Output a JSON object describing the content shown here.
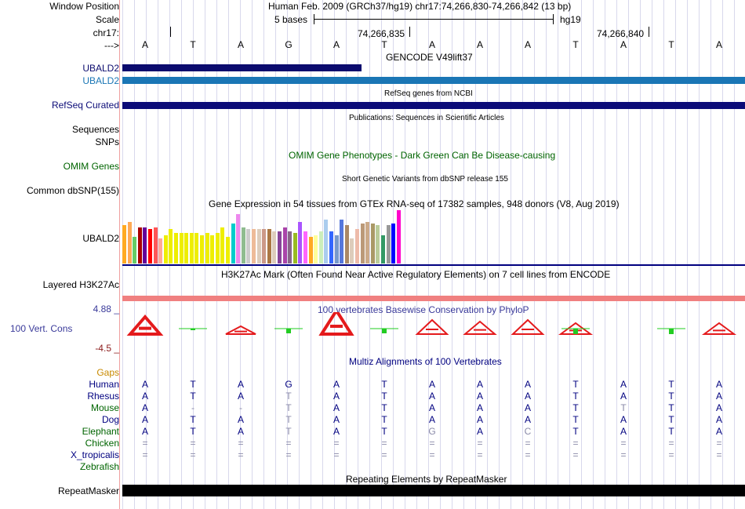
{
  "header": {
    "window_position_label": "Window Position",
    "window_position_value": "Human Feb. 2009 (GRCh37/hg19)   chr17:74,266,830-74,266,842 (13 bp)",
    "scale_label": "Scale",
    "scale_text": "5 bases",
    "scale_db": "hg19",
    "chrom_label": "chr17:",
    "pos1": "74,266,835",
    "pos2": "74,266,840",
    "strand_label": "--->"
  },
  "reference_bases": [
    "A",
    "T",
    "A",
    "G",
    "A",
    "T",
    "A",
    "A",
    "A",
    "T",
    "A",
    "T",
    "A"
  ],
  "tracks": {
    "gencode": {
      "title": "GENCODE V49lift37",
      "label1": "UBALD2",
      "label2": "UBALD2"
    },
    "refseq": {
      "title": "RefSeq genes from NCBI",
      "label": "RefSeq Curated"
    },
    "pubs": {
      "title": "Publications: Sequences in Scientific Articles",
      "label1": "Sequences",
      "label2": "SNPs"
    },
    "omim": {
      "title": "OMIM Gene Phenotypes - Dark Green Can Be Disease-causing",
      "label": "OMIM Genes"
    },
    "dbsnp": {
      "title": "Short Genetic Variants from dbSNP release 155",
      "label": "Common dbSNP(155)"
    },
    "gtex": {
      "title": "Gene Expression in 54 tissues from GTEx RNA-seq of 17382 samples, 948 donors (V8, Aug 2019)",
      "label": "UBALD2"
    },
    "h3k27ac": {
      "title": "H3K27Ac Mark (Often Found Near Active Regulatory Elements) on 7 cell lines from ENCODE",
      "label": "Layered H3K27Ac"
    },
    "phylop": {
      "title": "100 vertebrates Basewise Conservation by PhyloP",
      "label": "100 Vert. Cons",
      "max": "4.88 _",
      "min": "-4.5 _"
    },
    "multiz": {
      "title": "Multiz Alignments of 100 Vertebrates",
      "gaps_label": "Gaps"
    },
    "repeatmasker": {
      "title": "Repeating Elements by RepeatMasker",
      "label": "RepeatMasker"
    }
  },
  "alignment": [
    {
      "species": "Human",
      "color": "#000080",
      "bases": [
        "A",
        "T",
        "A",
        "G",
        "A",
        "T",
        "A",
        "A",
        "A",
        "T",
        "A",
        "T",
        "A"
      ]
    },
    {
      "species": "Rhesus",
      "color": "#000080",
      "bases": [
        "A",
        "T",
        "A",
        "T",
        "A",
        "T",
        "A",
        "A",
        "A",
        "T",
        "A",
        "T",
        "A"
      ]
    },
    {
      "species": "Mouse",
      "color": "#006400",
      "bases": [
        "A",
        "-",
        "-",
        "T",
        "A",
        "T",
        "A",
        "A",
        "A",
        "T",
        "T",
        "T",
        "A"
      ]
    },
    {
      "species": "Dog",
      "color": "#000080",
      "bases": [
        "A",
        "T",
        "A",
        "T",
        "A",
        "T",
        "A",
        "A",
        "A",
        "T",
        "A",
        "T",
        "A"
      ]
    },
    {
      "species": "Elephant",
      "color": "#006400",
      "bases": [
        "A",
        "T",
        "A",
        "T",
        "A",
        "T",
        "G",
        "A",
        "C",
        "T",
        "A",
        "T",
        "A"
      ]
    },
    {
      "species": "Chicken",
      "color": "#006400",
      "bases": [
        "=",
        "=",
        "=",
        "=",
        "=",
        "=",
        "=",
        "=",
        "=",
        "=",
        "=",
        "=",
        "="
      ]
    },
    {
      "species": "X_tropicalis",
      "color": "#000080",
      "bases": [
        "=",
        "=",
        "=",
        "=",
        "=",
        "=",
        "=",
        "=",
        "=",
        "=",
        "=",
        "=",
        "="
      ]
    },
    {
      "species": "Zebrafish",
      "color": "#006400",
      "bases": []
    }
  ],
  "gtex_values": [
    20,
    22,
    14,
    19,
    19,
    18,
    19,
    13,
    15,
    18,
    16,
    16,
    16,
    16,
    16,
    15,
    16,
    15,
    16,
    19,
    14,
    21,
    26,
    19,
    18,
    18,
    18,
    18,
    18,
    17,
    17,
    19,
    17,
    16,
    22,
    17,
    14,
    15,
    17,
    23,
    17,
    15,
    23,
    20,
    13,
    18,
    21,
    22,
    21,
    20,
    15,
    20,
    21,
    28
  ],
  "gtex_colors": [
    "#FFAA22",
    "#FFAA55",
    "#66CC66",
    "#AA0000",
    "#660099",
    "#FF0000",
    "#FF5555",
    "#FFAA99",
    "#EEEE00",
    "#EEEE00",
    "#EEEE00",
    "#EEEE00",
    "#EEEE00",
    "#EEEE00",
    "#EEEE00",
    "#EEEE00",
    "#EEEE00",
    "#EEEE00",
    "#EEEE00",
    "#EEEE00",
    "#EEEE00",
    "#00CCCC",
    "#EE88EE",
    "#8FBC8F",
    "#CCCCCC",
    "#EEBB99",
    "#DDCCBB",
    "#CC9988",
    "#AA7744",
    "#DDCCBB",
    "#884499",
    "#AA44AA",
    "#886688",
    "#99BB22",
    "#AA55FF",
    "#FF66FF",
    "#FFAA22",
    "#FFFF99",
    "#CCEEBB",
    "#AACCEE",
    "#3366FF",
    "#7799CC",
    "#5577DD",
    "#AA8866",
    "#DDCCBB",
    "#EEBBAA",
    "#BB9977",
    "#CCAA88",
    "#AA9966",
    "#BBCC99",
    "#339966",
    "#999999",
    "#0000FF",
    "#FF00CC"
  ],
  "conservation": [
    {
      "type": "up",
      "h": 11
    },
    {
      "type": "down",
      "h": 2
    },
    {
      "type": "up",
      "h": 5
    },
    {
      "type": "down",
      "h": 6
    },
    {
      "type": "up",
      "h": 15
    },
    {
      "type": "down",
      "h": 6
    },
    {
      "type": "up",
      "h": 9
    },
    {
      "type": "up",
      "h": 8
    },
    {
      "type": "up",
      "h": 9
    },
    {
      "type": "mixed",
      "h": 7
    },
    {
      "type": "none",
      "h": 0
    },
    {
      "type": "down",
      "h": 7
    },
    {
      "type": "up",
      "h": 7
    }
  ],
  "colors": {
    "gencode_dark": "#0B0B6E",
    "gencode_light": "#1A76B5",
    "refseq": "#0C0C78",
    "h3k27ac": "#F08080",
    "cons_pos": "#E41A1C",
    "cons_neg": "#22CC22",
    "repeat": "#000000"
  }
}
